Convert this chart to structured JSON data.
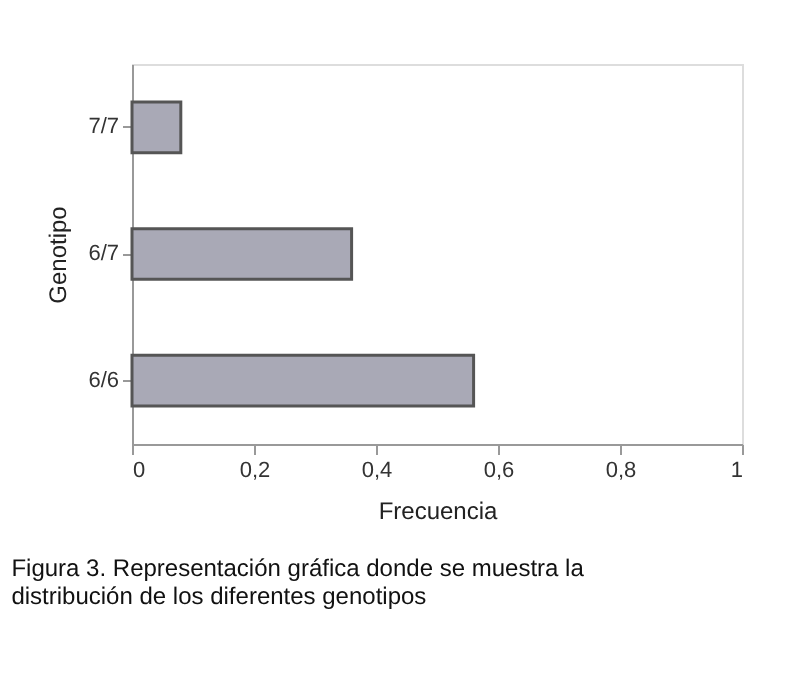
{
  "chart_data": {
    "type": "bar",
    "orientation": "horizontal",
    "ylabel": "Genotipo",
    "xlabel": "Frecuencia",
    "categories": [
      "7/7",
      "6/7",
      "6/6"
    ],
    "values": [
      0.08,
      0.36,
      0.56
    ],
    "color": "#a9a9b6",
    "xlim": [
      0,
      1
    ],
    "xticks": [
      0,
      {
        "value": 0.2,
        "label": "0,2"
      },
      {
        "value": 0.4,
        "label": "0,4"
      },
      {
        "value": 0.6,
        "label": "0,6"
      },
      {
        "value": 0.8,
        "label": "0,8"
      },
      1
    ],
    "grid": false,
    "annotations": [
      "Figura 3. Representación gráfica donde se muestra la distribución de los diferentes genotipos"
    ]
  }
}
